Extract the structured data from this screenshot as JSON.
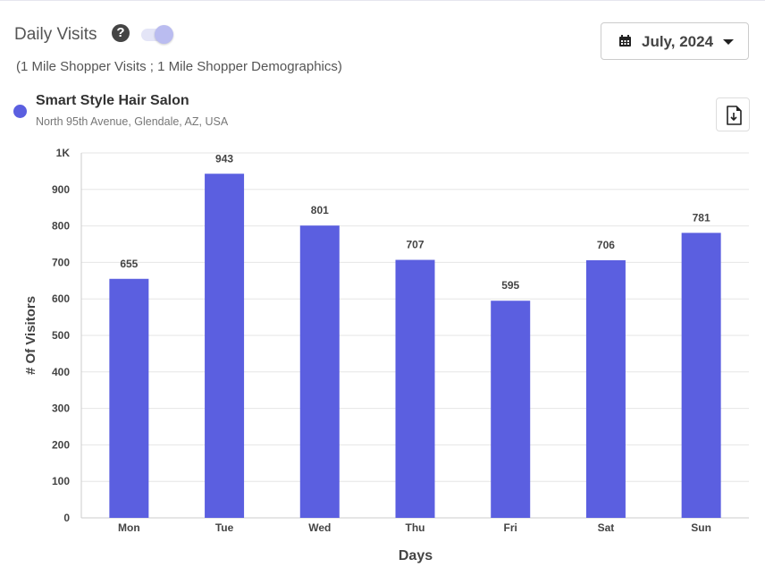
{
  "header": {
    "title": "Daily Visits",
    "help_icon": "?",
    "toggle_on": true,
    "subtitle": "(1 Mile Shopper Visits ; 1 Mile Shopper Demographics)",
    "date_label": "July, 2024"
  },
  "location": {
    "name": "Smart Style Hair Salon",
    "address": "North 95th Avenue, Glendale, AZ, USA",
    "color": "#5b5fe0"
  },
  "chart_data": {
    "type": "bar",
    "categories": [
      "Mon",
      "Tue",
      "Wed",
      "Thu",
      "Fri",
      "Sat",
      "Sun"
    ],
    "values": [
      655,
      943,
      801,
      707,
      595,
      706,
      781
    ],
    "xlabel": "Days",
    "ylabel": "# Of Visitors",
    "ylim": [
      0,
      1000
    ],
    "yticks": [
      0,
      100,
      200,
      300,
      400,
      500,
      600,
      700,
      800,
      900,
      1000
    ],
    "ytick_labels": [
      "0",
      "100",
      "200",
      "300",
      "400",
      "500",
      "600",
      "700",
      "800",
      "900",
      "1K"
    ],
    "grid": true,
    "bar_color": "#5b5fe0"
  }
}
